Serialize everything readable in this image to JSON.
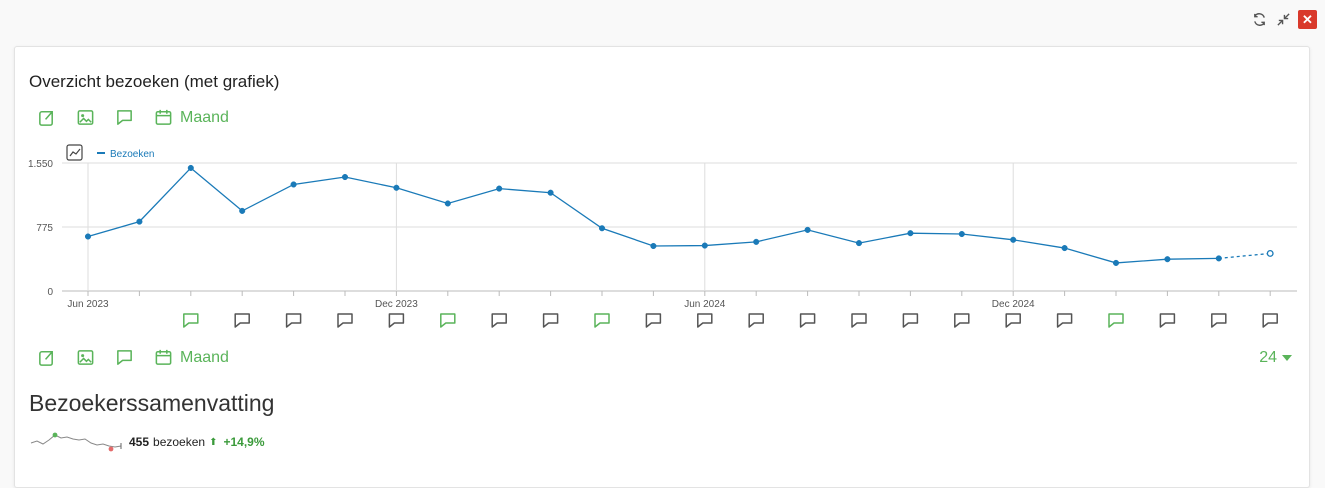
{
  "window": {
    "refresh_icon": "refresh-icon",
    "collapse_icon": "collapse-icon",
    "close_icon": "close-icon"
  },
  "widget": {
    "title": "Overzicht bezoeken (met grafiek)",
    "toolbar": {
      "period_label": "Maand"
    },
    "count_selector": "24",
    "section_title": "Bezoekerssamenvatting",
    "summary": {
      "count": "455",
      "label": "bezoeken",
      "change": "+14,9%"
    }
  },
  "colors": {
    "accent": "#5ab45a",
    "series": "#1a7ab8",
    "close": "#d9392b"
  },
  "chart_data": {
    "type": "line",
    "legend": [
      "Bezoeken"
    ],
    "y_ticks": [
      "1.550",
      "775",
      "0"
    ],
    "ylim": [
      0,
      1550
    ],
    "x_tick_labels": [
      {
        "index": 0,
        "label": "Jun 2023"
      },
      {
        "index": 6,
        "label": "Dec 2023"
      },
      {
        "index": 12,
        "label": "Jun 2024"
      },
      {
        "index": 18,
        "label": "Dec 2024"
      }
    ],
    "series": [
      {
        "name": "Bezoeken",
        "values": [
          660,
          840,
          1490,
          970,
          1290,
          1380,
          1250,
          1060,
          1240,
          1190,
          760,
          545,
          550,
          595,
          740,
          580,
          700,
          690,
          620,
          520,
          340,
          385,
          395,
          455
        ]
      }
    ],
    "last_point_projected": true,
    "annotations": [
      false,
      false,
      true,
      false,
      false,
      false,
      false,
      true,
      false,
      false,
      true,
      false,
      false,
      false,
      false,
      false,
      false,
      false,
      false,
      false,
      true,
      false,
      false,
      false
    ]
  }
}
